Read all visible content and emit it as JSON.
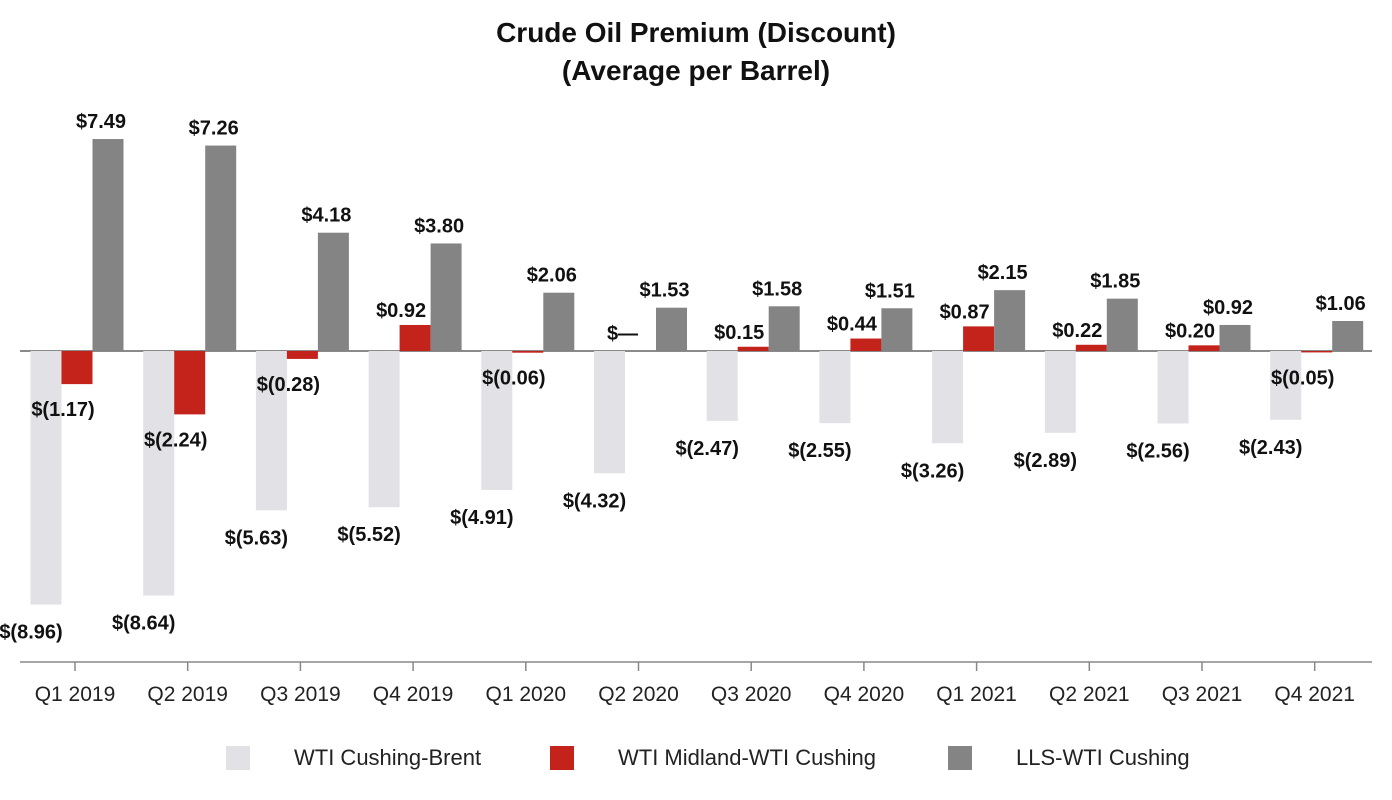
{
  "chart_data": {
    "type": "bar",
    "title": "Crude Oil Premium (Discount)",
    "subtitle": "(Average per Barrel)",
    "xlabel": "",
    "ylabel": "",
    "ylim": [
      -9,
      8
    ],
    "grid": false,
    "legend_position": "bottom",
    "categories": [
      "Q1 2019",
      "Q2 2019",
      "Q3 2019",
      "Q4 2019",
      "Q1 2020",
      "Q2 2020",
      "Q3 2020",
      "Q4 2020",
      "Q1 2021",
      "Q2 2021",
      "Q3 2021",
      "Q4 2021"
    ],
    "series": [
      {
        "name": "WTI Cushing-Brent",
        "color": "#e1e1e6",
        "values": [
          -8.96,
          -8.64,
          -5.63,
          -5.52,
          -4.91,
          -4.32,
          -2.47,
          -2.55,
          -3.26,
          -2.89,
          -2.56,
          -2.43
        ],
        "labels": [
          "$(8.96)",
          "$(8.64)",
          "$(5.63)",
          "$(5.52)",
          "$(4.91)",
          "$(4.32)",
          "$(2.47)",
          "$(2.55)",
          "$(3.26)",
          "$(2.89)",
          "$(2.56)",
          "$(2.43)"
        ]
      },
      {
        "name": "WTI Midland-WTI Cushing",
        "color": "#c4231b",
        "values": [
          -1.17,
          -2.24,
          -0.28,
          0.92,
          -0.06,
          0,
          0.15,
          0.44,
          0.87,
          0.22,
          0.2,
          -0.05
        ],
        "labels": [
          "$(1.17)",
          "$(2.24)",
          "$(0.28)",
          "$0.92",
          "$(0.06)",
          "$—",
          "$0.15",
          "$0.44",
          "$0.87",
          "$0.22",
          "$0.20",
          "$(0.05)"
        ]
      },
      {
        "name": "LLS-WTI Cushing",
        "color": "#848484",
        "values": [
          7.49,
          7.26,
          4.18,
          3.8,
          2.06,
          1.53,
          1.58,
          1.51,
          2.15,
          1.85,
          0.92,
          1.06
        ],
        "labels": [
          "$7.49",
          "$7.26",
          "$4.18",
          "$3.80",
          "$2.06",
          "$1.53",
          "$1.58",
          "$1.51",
          "$2.15",
          "$1.85",
          "$0.92",
          "$1.06"
        ]
      }
    ]
  }
}
